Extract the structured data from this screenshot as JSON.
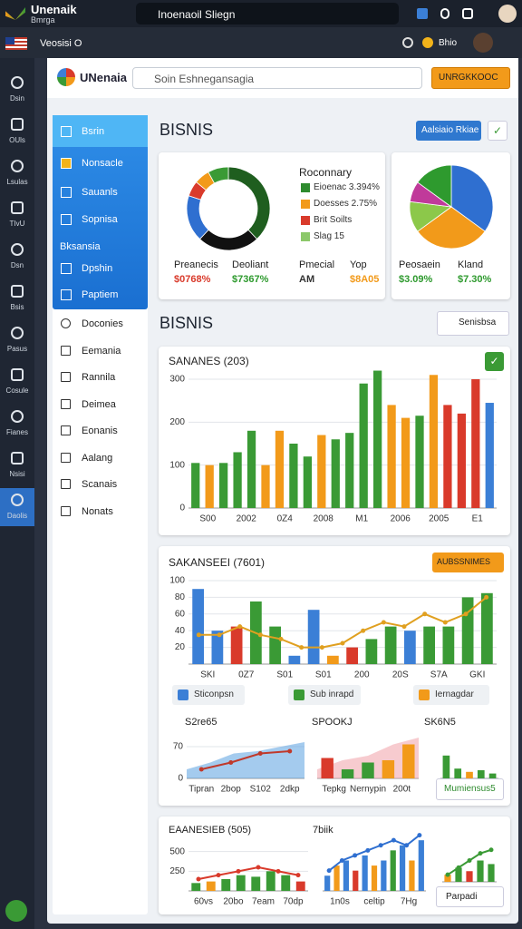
{
  "top_bar": {
    "app_name": "Unenaik",
    "app_sub": "Bmrga",
    "search": "Inoenaoil Sliegn"
  },
  "sub_bar": {
    "location": "Veosisi O",
    "user": "Bhio"
  },
  "rail": [
    "Dsin",
    "OUls",
    "Lsulas",
    "TIvU",
    "Dsn",
    "Bsis",
    "Pasus",
    "Cosule",
    "Fianes",
    "Nsisi",
    "Daolis"
  ],
  "header": {
    "logo": "UNenaia",
    "search": "Soin Eshnegansagia",
    "button": "UNRGKKOOC"
  },
  "sidebar": {
    "primary": [
      "Bsrin",
      "Nonsacle",
      "Sauanls",
      "Sopnisa"
    ],
    "section": "Bksansia",
    "primary2": [
      "Dpshin",
      "Paptiem"
    ],
    "secondary": [
      "Doconies",
      "Eemania",
      "Rannila",
      "Deimea",
      "Eonanis",
      "Aalang",
      "Scanais",
      "Nonats"
    ]
  },
  "section1": {
    "title": "BISNIS",
    "button": "Aalsiaio Rkiae"
  },
  "donut_card": {
    "legend_title": "Roconnary",
    "legend": [
      {
        "name": "Eioenac 3.394%",
        "color": "#2e8b2e"
      },
      {
        "name": "Doesses 2.75%",
        "color": "#f29a1a"
      },
      {
        "name": "Brit Soilts",
        "color": "#d93a2b"
      },
      {
        "name": "Slag 15",
        "color": "#8cc86a"
      }
    ],
    "segments": [
      {
        "color": "#1f5e1f",
        "value": 38
      },
      {
        "color": "#111111",
        "value": 24
      },
      {
        "color": "#2f6fd0",
        "value": 18
      },
      {
        "color": "#d93a2b",
        "value": 6
      },
      {
        "color": "#f29a1a",
        "value": 6
      },
      {
        "color": "#3a9a35",
        "value": 8
      }
    ],
    "stats": [
      {
        "label": "Preanecis",
        "value": "$0768%",
        "color": "#d93a2b"
      },
      {
        "label": "Deoliant",
        "value": "$7367%",
        "color": "#2e9a2e"
      },
      {
        "label": "Pmecial",
        "value": "AM",
        "color": "#333333"
      },
      {
        "label": "Yop",
        "value": "$8A05",
        "color": "#f29a1a"
      }
    ]
  },
  "pie_card": {
    "segments": [
      {
        "color": "#2f6fd0",
        "value": 35
      },
      {
        "color": "#f29a1a",
        "value": 30
      },
      {
        "color": "#8cc84a",
        "value": 12
      },
      {
        "color": "#c03a9a",
        "value": 8
      },
      {
        "color": "#2e9a2e",
        "value": 15
      }
    ],
    "stats": [
      {
        "label": "Peosaein",
        "value": "$3.09%",
        "color": "#2e9a2e"
      },
      {
        "label": "Kland",
        "value": "$7.30%",
        "color": "#2e9a2e"
      }
    ]
  },
  "section2": {
    "title": "BISNIS",
    "button": "Senisbsa"
  },
  "sales_chart": {
    "title": "SANANES (203)",
    "ylim": [
      0,
      300
    ],
    "yticks": [
      0,
      100,
      200,
      300
    ],
    "bars": {
      "values": [
        105,
        100,
        105,
        130,
        180,
        100,
        180,
        150,
        120,
        170,
        160,
        175,
        290,
        320,
        240,
        210,
        215,
        310,
        240,
        220,
        300,
        245
      ],
      "colors": [
        "#3a9a35",
        "#f29a1a",
        "#3a9a35",
        "#3a9a35",
        "#3a9a35",
        "#f29a1a",
        "#f29a1a",
        "#3a9a35",
        "#3a9a35",
        "#f29a1a",
        "#3a9a35",
        "#3a9a35",
        "#3a9a35",
        "#3a9a35",
        "#f29a1a",
        "#f29a1a",
        "#3a9a35",
        "#f29a1a",
        "#d93a2b",
        "#d93a2b",
        "#d93a2b",
        "#3b7fd6"
      ]
    },
    "x_labels": [
      "S00",
      "2002",
      "0Z4",
      "2008",
      "M1",
      "2006",
      "2005",
      "E1"
    ]
  },
  "combo_chart": {
    "title": "SAKANSEEI (7601)",
    "button": "AUBSSNIMES",
    "ylim": [
      0,
      100
    ],
    "yticks": [
      20,
      40,
      60,
      80,
      100
    ],
    "bars": {
      "values": [
        90,
        40,
        45,
        75,
        45,
        10,
        65,
        10,
        20,
        30,
        45,
        40,
        45,
        45,
        80,
        85
      ],
      "colors": [
        "#3b7fd6",
        "#3b7fd6",
        "#d93a2b",
        "#3a9a35",
        "#3a9a35",
        "#3b7fd6",
        "#3b7fd6",
        "#f29a1a",
        "#d93a2b",
        "#3a9a35",
        "#3a9a35",
        "#3b7fd6",
        "#3a9a35",
        "#3a9a35",
        "#3a9a35",
        "#3a9a35"
      ]
    },
    "line": {
      "color": "#e0a020",
      "values": [
        35,
        35,
        45,
        35,
        30,
        20,
        20,
        25,
        40,
        50,
        45,
        60,
        50,
        60,
        80
      ]
    },
    "x_labels": [
      "SKI",
      "0Z7",
      "S01",
      "S01",
      "200",
      "20S",
      "S7A",
      "GKI"
    ],
    "chips": [
      "Sticonpsn",
      "Sub inrapd",
      "Iernagdar"
    ]
  },
  "mini_charts": [
    {
      "title": "S2re65",
      "ylim": [
        0,
        100
      ],
      "yticks": [
        0,
        70
      ],
      "area": {
        "color": "#5aa0e0",
        "values": [
          20,
          35,
          55,
          60,
          70,
          80
        ]
      },
      "line": {
        "color": "#c0392b",
        "values": [
          20,
          35,
          55,
          60
        ]
      },
      "x_labels": [
        "Tipran",
        "2bop",
        "S102",
        "2dkp"
      ]
    },
    {
      "title": "SPOOKJ",
      "ylim": [
        0,
        100
      ],
      "area": {
        "color": "#f0a0a8",
        "values": [
          20,
          40,
          50,
          75,
          90
        ]
      },
      "bars": {
        "values": [
          45,
          20,
          35,
          40,
          75
        ],
        "colors": [
          "#d93a2b",
          "#3a9a35",
          "#3a9a35",
          "#f29a1a",
          "#f29a1a"
        ]
      },
      "x_labels": [
        "Tepkg",
        "Nernypin",
        "200t"
      ]
    },
    {
      "title": "SK6N5",
      "ylim": [
        0,
        100
      ],
      "bars": {
        "values": [
          70,
          30,
          20,
          25,
          15
        ],
        "colors": [
          "#3a9a35",
          "#3a9a35",
          "#f29a1a",
          "#3a9a35",
          "#3a9a35"
        ]
      },
      "button": "Mumiensus5"
    }
  ],
  "bottom_charts": [
    {
      "title": "EAANESIEB (505)",
      "ylim": [
        0,
        600
      ],
      "yticks": [
        250,
        500
      ],
      "bars": {
        "values": [
          100,
          120,
          150,
          200,
          180,
          250,
          200,
          120
        ],
        "colors": [
          "#3a9a35",
          "#f29a1a",
          "#3a9a35",
          "#3a9a35",
          "#3a9a35",
          "#3a9a35",
          "#3a9a35",
          "#d93a2b"
        ]
      },
      "line": {
        "color": "#d93a2b",
        "values": [
          150,
          200,
          250,
          300,
          250,
          200
        ]
      },
      "x_labels": [
        "60vs",
        "20bo",
        "7eam",
        "70dp"
      ]
    },
    {
      "title": "7biik",
      "ylim": [
        0,
        600
      ],
      "bars": {
        "values": [
          150,
          250,
          300,
          200,
          350,
          250,
          300,
          400,
          450,
          300,
          500
        ],
        "colors": [
          "#3b7fd6",
          "#f29a1a",
          "#3b7fd6",
          "#d93a2b",
          "#3b7fd6",
          "#f29a1a",
          "#3b7fd6",
          "#3a9a35",
          "#3b7fd6",
          "#f29a1a",
          "#3b7fd6"
        ]
      },
      "line": {
        "color": "#2f6fd0",
        "values": [
          200,
          300,
          350,
          400,
          450,
          500,
          450,
          550
        ]
      },
      "x_labels": [
        "1n0s",
        "celtip",
        "7Hg"
      ]
    },
    {
      "ylim": [
        0,
        600
      ],
      "bars": {
        "values": [
          100,
          200,
          150,
          300,
          250
        ],
        "colors": [
          "#f29a1a",
          "#3a9a35",
          "#d93a2b",
          "#3a9a35",
          "#3a9a35"
        ]
      },
      "line": {
        "color": "#3a9a35",
        "values": [
          100,
          200,
          300,
          400,
          450
        ]
      },
      "button": "Parpadi"
    }
  ]
}
